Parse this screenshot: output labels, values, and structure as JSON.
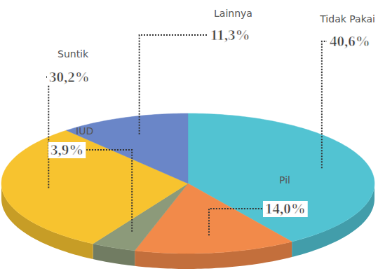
{
  "chart_data": {
    "type": "pie",
    "categories": [
      "Tidak Pakai",
      "Pil",
      "IUD",
      "Suntik",
      "Lainnya"
    ],
    "values": [
      40.6,
      14.0,
      3.9,
      30.2,
      11.3
    ],
    "value_labels": [
      "40,6%",
      "14,0%",
      "3,9%",
      "30,2%",
      "11,3%"
    ],
    "colors": [
      "#52c3d2",
      "#f28a4a",
      "#8c9a7a",
      "#f7c32f",
      "#6a86c8"
    ],
    "data_labels": true
  }
}
